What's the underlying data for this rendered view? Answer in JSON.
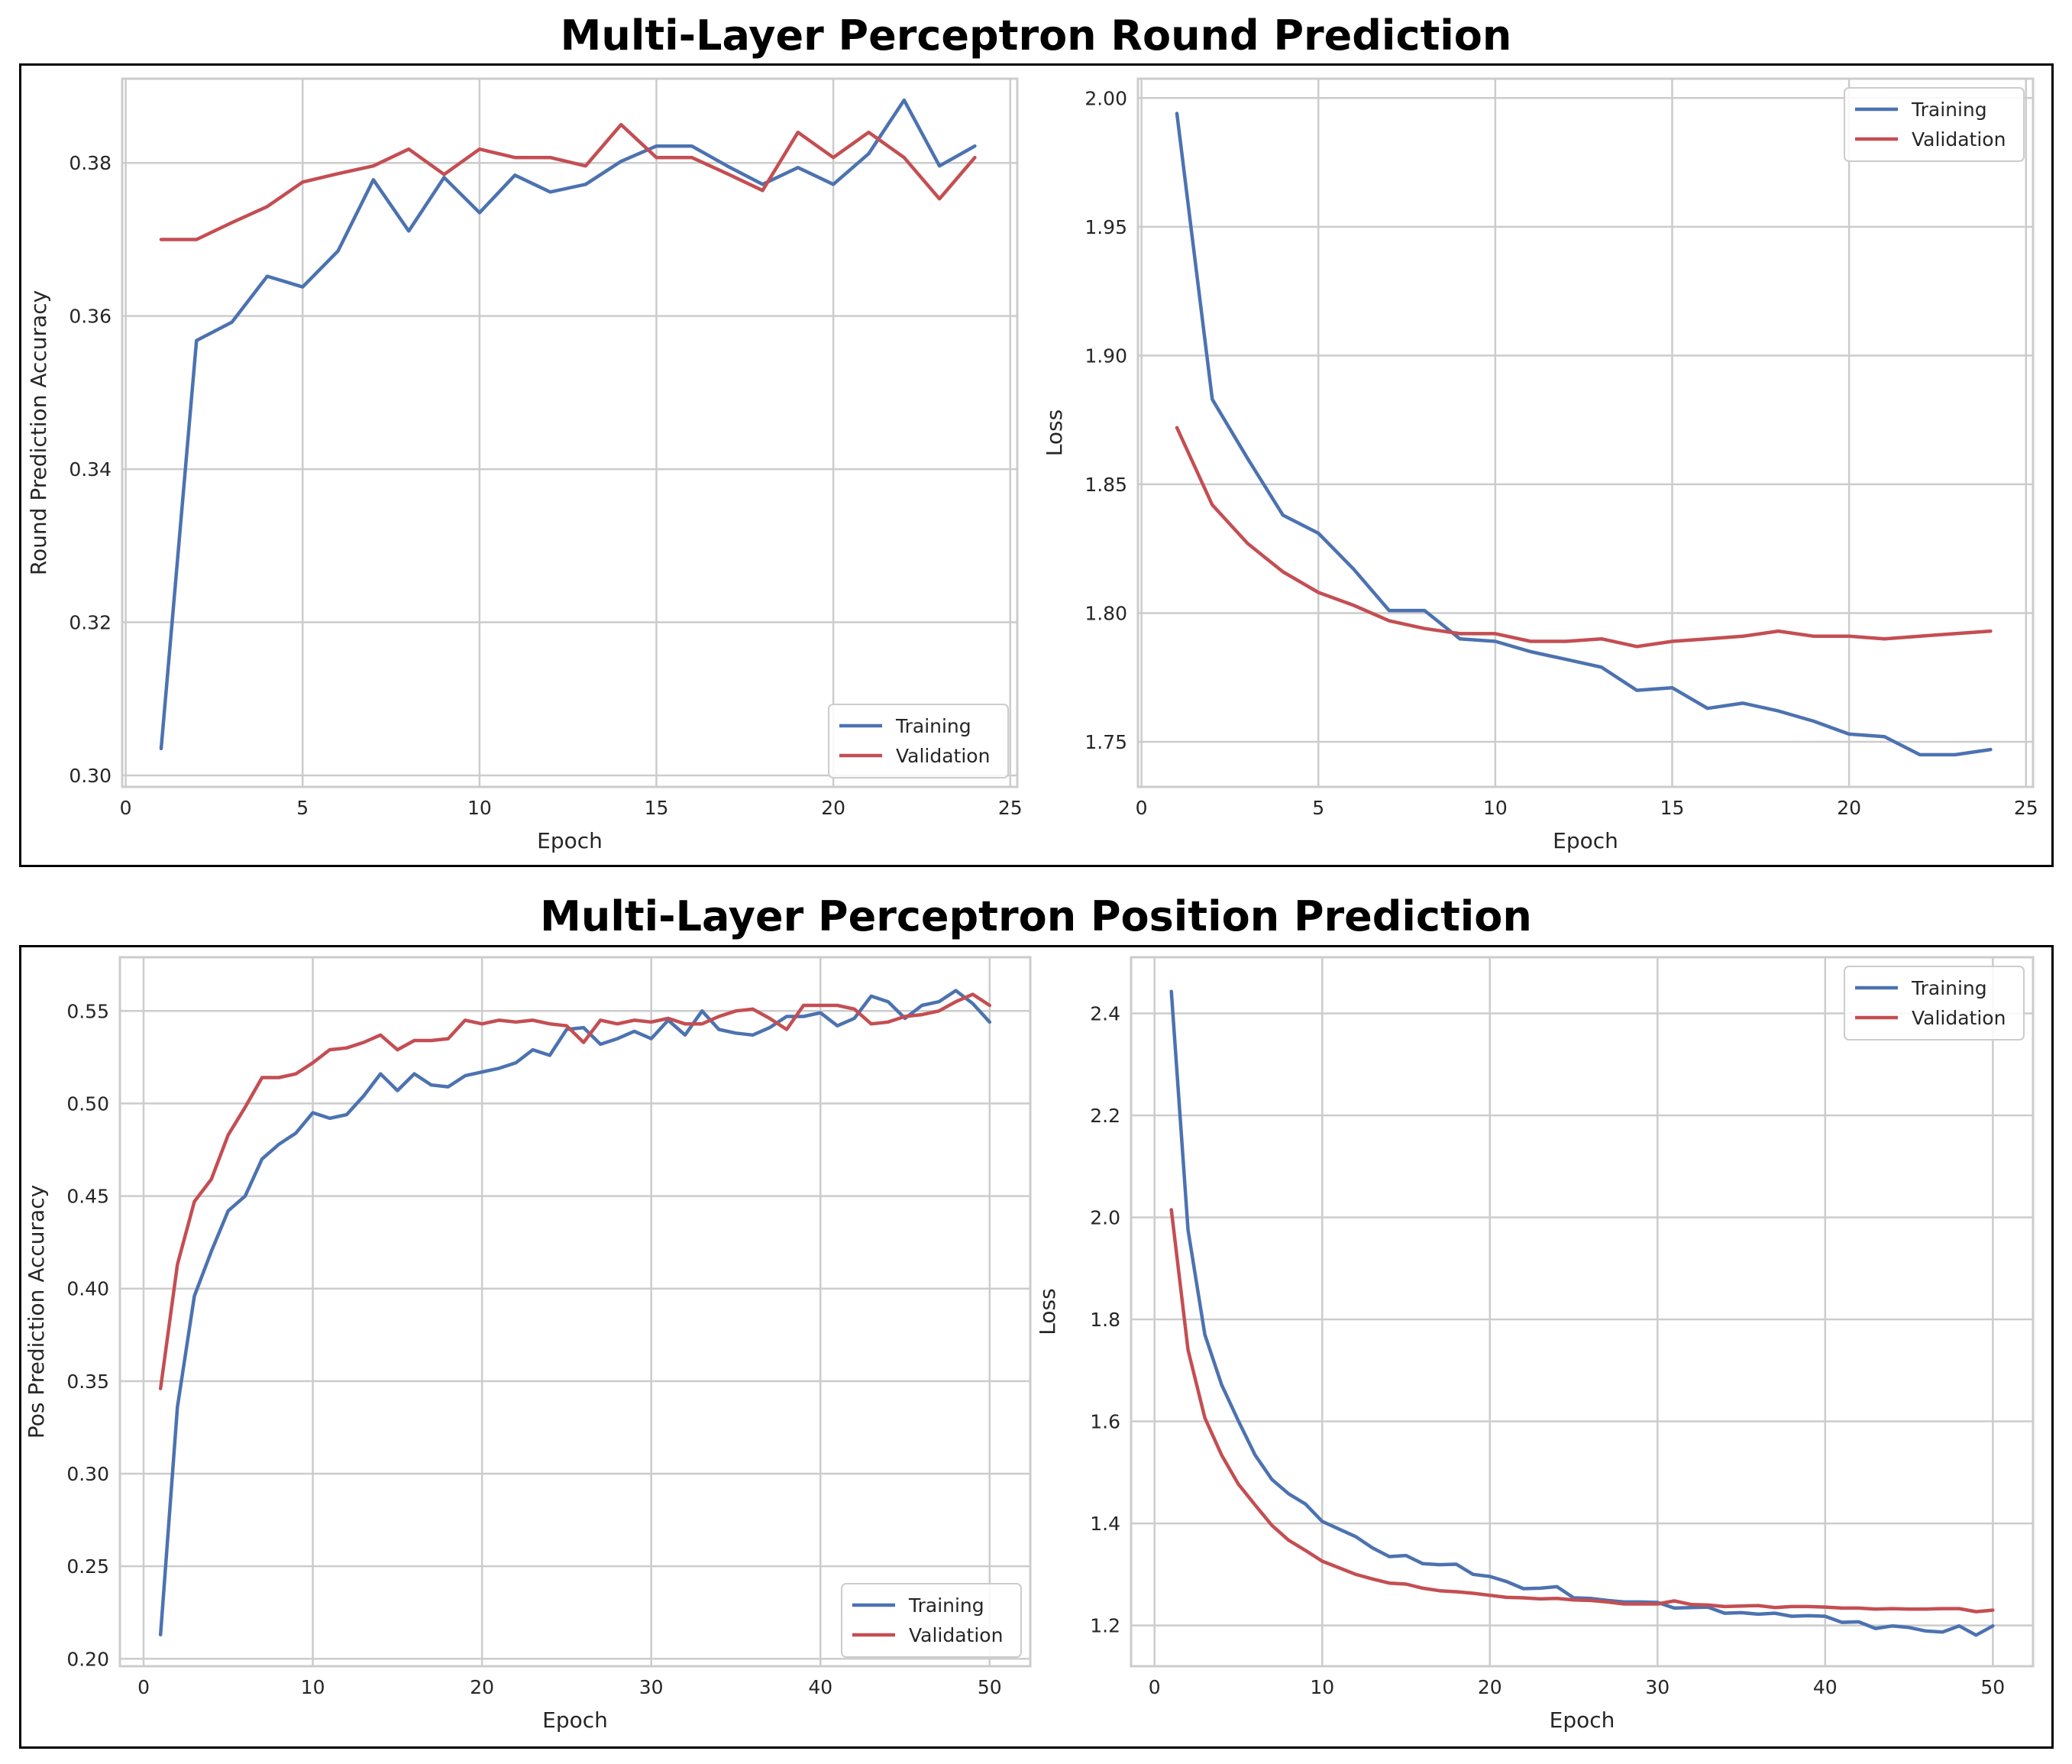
{
  "sections": [
    {
      "title": "Multi-Layer Perceptron Round Prediction",
      "charts": [
        {
          "type": "line",
          "xlabel": "Epoch",
          "ylabel": "Round Prediction Accuracy",
          "xlim": [
            -0.1,
            25.2
          ],
          "ylim": [
            0.2985,
            0.391
          ],
          "xticks": [
            0,
            5,
            10,
            15,
            20,
            25
          ],
          "yticks": [
            0.3,
            0.32,
            0.34,
            0.36,
            0.38
          ],
          "ytick_decimals": 2,
          "legend": "lower-right",
          "series": [
            {
              "name": "Training",
              "color": "#4c72b0",
              "x": [
                1,
                2,
                3,
                4,
                5,
                6,
                7,
                8,
                9,
                10,
                11,
                12,
                13,
                14,
                15,
                16,
                17,
                18,
                19,
                20,
                21,
                22,
                23,
                24
              ],
              "y": [
                0.3035,
                0.3568,
                0.3592,
                0.3652,
                0.3638,
                0.3685,
                0.3778,
                0.3711,
                0.3781,
                0.3735,
                0.3784,
                0.3762,
                0.3772,
                0.3802,
                0.3822,
                0.3822,
                0.3796,
                0.3772,
                0.3794,
                0.3772,
                0.3812,
                0.3882,
                0.3796,
                0.3822
              ]
            },
            {
              "name": "Validation",
              "color": "#c44e52",
              "x": [
                1,
                2,
                3,
                4,
                5,
                6,
                7,
                8,
                9,
                10,
                11,
                12,
                13,
                14,
                15,
                16,
                17,
                18,
                19,
                20,
                21,
                22,
                23,
                24
              ],
              "y": [
                0.37,
                0.37,
                0.3722,
                0.3743,
                0.3775,
                0.3786,
                0.3796,
                0.3818,
                0.3785,
                0.3818,
                0.3807,
                0.3807,
                0.3796,
                0.385,
                0.3807,
                0.3807,
                0.3786,
                0.3764,
                0.384,
                0.3807,
                0.384,
                0.3807,
                0.3753,
                0.3807
              ]
            }
          ]
        },
        {
          "type": "line",
          "xlabel": "Epoch",
          "ylabel": "Loss",
          "xlim": [
            -0.1,
            25.2
          ],
          "ylim": [
            1.7325,
            2.0075
          ],
          "xticks": [
            0,
            5,
            10,
            15,
            20,
            25
          ],
          "yticks": [
            1.75,
            1.8,
            1.85,
            1.9,
            1.95,
            2.0
          ],
          "ytick_decimals": 2,
          "legend": "upper-right",
          "series": [
            {
              "name": "Training",
              "color": "#4c72b0",
              "x": [
                1,
                2,
                3,
                4,
                5,
                6,
                7,
                8,
                9,
                10,
                11,
                12,
                13,
                14,
                15,
                16,
                17,
                18,
                19,
                20,
                21,
                22,
                23,
                24
              ],
              "y": [
                1.994,
                1.883,
                1.86,
                1.838,
                1.831,
                1.817,
                1.801,
                1.801,
                1.79,
                1.789,
                1.785,
                1.782,
                1.779,
                1.77,
                1.771,
                1.763,
                1.765,
                1.762,
                1.758,
                1.753,
                1.752,
                1.745,
                1.745,
                1.747
              ]
            },
            {
              "name": "Validation",
              "color": "#c44e52",
              "x": [
                1,
                2,
                3,
                4,
                5,
                6,
                7,
                8,
                9,
                10,
                11,
                12,
                13,
                14,
                15,
                16,
                17,
                18,
                19,
                20,
                21,
                22,
                23,
                24
              ],
              "y": [
                1.872,
                1.842,
                1.827,
                1.816,
                1.808,
                1.803,
                1.797,
                1.794,
                1.792,
                1.792,
                1.789,
                1.789,
                1.79,
                1.787,
                1.789,
                1.79,
                1.791,
                1.793,
                1.791,
                1.791,
                1.79,
                1.791,
                1.792,
                1.793
              ]
            }
          ]
        }
      ]
    },
    {
      "title": "Multi-Layer Perceptron Position Prediction",
      "charts": [
        {
          "type": "line",
          "xlabel": "Epoch",
          "ylabel": "Pos Prediction Accuracy",
          "xlim": [
            -1.4,
            52.4
          ],
          "ylim": [
            0.196,
            0.579
          ],
          "xticks": [
            0,
            10,
            20,
            30,
            40,
            50
          ],
          "yticks": [
            0.2,
            0.25,
            0.3,
            0.35,
            0.4,
            0.45,
            0.5,
            0.55
          ],
          "ytick_decimals": 2,
          "legend": "lower-right",
          "series": [
            {
              "name": "Training",
              "color": "#4c72b0",
              "x": [
                1,
                2,
                3,
                4,
                5,
                6,
                7,
                8,
                9,
                10,
                11,
                12,
                13,
                14,
                15,
                16,
                17,
                18,
                19,
                20,
                21,
                22,
                23,
                24,
                25,
                26,
                27,
                28,
                29,
                30,
                31,
                32,
                33,
                34,
                35,
                36,
                37,
                38,
                39,
                40,
                41,
                42,
                43,
                44,
                45,
                46,
                47,
                48,
                49,
                50
              ],
              "y": [
                0.213,
                0.336,
                0.396,
                0.42,
                0.442,
                0.45,
                0.47,
                0.478,
                0.484,
                0.495,
                0.492,
                0.494,
                0.504,
                0.516,
                0.507,
                0.516,
                0.51,
                0.509,
                0.515,
                0.517,
                0.519,
                0.522,
                0.529,
                0.526,
                0.54,
                0.541,
                0.532,
                0.535,
                0.539,
                0.535,
                0.545,
                0.537,
                0.55,
                0.54,
                0.538,
                0.537,
                0.541,
                0.547,
                0.547,
                0.549,
                0.542,
                0.546,
                0.558,
                0.555,
                0.546,
                0.553,
                0.555,
                0.561,
                0.554,
                0.544
              ]
            },
            {
              "name": "Validation",
              "color": "#c44e52",
              "x": [
                1,
                2,
                3,
                4,
                5,
                6,
                7,
                8,
                9,
                10,
                11,
                12,
                13,
                14,
                15,
                16,
                17,
                18,
                19,
                20,
                21,
                22,
                23,
                24,
                25,
                26,
                27,
                28,
                29,
                30,
                31,
                32,
                33,
                34,
                35,
                36,
                37,
                38,
                39,
                40,
                41,
                42,
                43,
                44,
                45,
                46,
                47,
                48,
                49,
                50
              ],
              "y": [
                0.346,
                0.413,
                0.447,
                0.459,
                0.483,
                0.498,
                0.514,
                0.514,
                0.516,
                0.522,
                0.529,
                0.53,
                0.533,
                0.537,
                0.529,
                0.534,
                0.534,
                0.535,
                0.545,
                0.543,
                0.545,
                0.544,
                0.545,
                0.543,
                0.542,
                0.533,
                0.545,
                0.543,
                0.545,
                0.544,
                0.546,
                0.543,
                0.543,
                0.547,
                0.55,
                0.551,
                0.546,
                0.54,
                0.553,
                0.553,
                0.553,
                0.551,
                0.543,
                0.544,
                0.547,
                0.548,
                0.55,
                0.555,
                0.559,
                0.553
              ]
            }
          ]
        },
        {
          "type": "line",
          "xlabel": "Epoch",
          "ylabel": "Loss",
          "xlim": [
            -1.4,
            52.4
          ],
          "ylim": [
            1.12,
            2.51
          ],
          "xticks": [
            0,
            10,
            20,
            30,
            40,
            50
          ],
          "yticks": [
            1.2,
            1.4,
            1.6,
            1.8,
            2.0,
            2.2,
            2.4
          ],
          "ytick_decimals": 1,
          "legend": "upper-right",
          "series": [
            {
              "name": "Training",
              "color": "#4c72b0",
              "x": [
                1,
                2,
                3,
                4,
                5,
                6,
                7,
                8,
                9,
                10,
                11,
                12,
                13,
                14,
                15,
                16,
                17,
                18,
                19,
                20,
                21,
                22,
                23,
                24,
                25,
                26,
                27,
                28,
                29,
                30,
                31,
                32,
                33,
                34,
                35,
                36,
                37,
                38,
                39,
                40,
                41,
                42,
                43,
                44,
                45,
                46,
                47,
                48,
                49,
                50
              ],
              "y": [
                2.443,
                1.975,
                1.77,
                1.672,
                1.601,
                1.534,
                1.486,
                1.458,
                1.438,
                1.404,
                1.389,
                1.374,
                1.352,
                1.335,
                1.337,
                1.321,
                1.319,
                1.32,
                1.3,
                1.296,
                1.286,
                1.272,
                1.273,
                1.276,
                1.254,
                1.253,
                1.249,
                1.246,
                1.246,
                1.245,
                1.234,
                1.235,
                1.236,
                1.224,
                1.225,
                1.222,
                1.224,
                1.218,
                1.219,
                1.218,
                1.206,
                1.207,
                1.194,
                1.199,
                1.196,
                1.189,
                1.187,
                1.199,
                1.181,
                1.199
              ]
            },
            {
              "name": "Validation",
              "color": "#c44e52",
              "x": [
                1,
                2,
                3,
                4,
                5,
                6,
                7,
                8,
                9,
                10,
                11,
                12,
                13,
                14,
                15,
                16,
                17,
                18,
                19,
                20,
                21,
                22,
                23,
                24,
                25,
                26,
                27,
                28,
                29,
                30,
                31,
                32,
                33,
                34,
                35,
                36,
                37,
                38,
                39,
                40,
                41,
                42,
                43,
                44,
                45,
                46,
                47,
                48,
                49,
                50
              ],
              "y": [
                2.015,
                1.74,
                1.607,
                1.534,
                1.477,
                1.436,
                1.396,
                1.367,
                1.347,
                1.326,
                1.313,
                1.3,
                1.291,
                1.283,
                1.281,
                1.273,
                1.268,
                1.266,
                1.263,
                1.259,
                1.255,
                1.254,
                1.252,
                1.253,
                1.25,
                1.249,
                1.246,
                1.242,
                1.242,
                1.242,
                1.248,
                1.241,
                1.24,
                1.237,
                1.238,
                1.239,
                1.235,
                1.237,
                1.237,
                1.236,
                1.234,
                1.234,
                1.232,
                1.233,
                1.232,
                1.232,
                1.233,
                1.233,
                1.227,
                1.23
              ]
            }
          ]
        }
      ]
    }
  ]
}
